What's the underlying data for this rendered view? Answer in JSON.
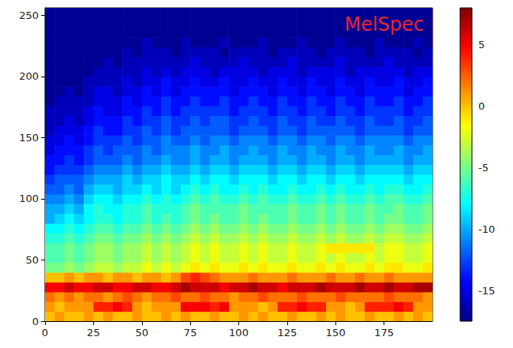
{
  "chart_data": {
    "type": "heatmap",
    "title": "MelSpec",
    "x_bins": [
      0,
      5,
      10,
      15,
      20,
      25,
      30,
      35,
      40,
      45,
      50,
      55,
      60,
      65,
      70,
      75,
      80,
      85,
      90,
      95,
      100,
      105,
      110,
      115,
      120,
      125,
      130,
      135,
      140,
      145,
      150,
      155,
      160,
      165,
      170,
      175,
      180,
      185,
      190,
      195,
      200
    ],
    "y_bins": [
      0,
      8,
      16,
      24,
      32,
      40,
      48,
      56,
      64,
      72,
      80,
      88,
      96,
      104,
      112,
      120,
      128,
      136,
      144,
      152,
      160,
      168,
      176,
      184,
      192,
      200,
      208,
      216,
      224,
      232,
      240,
      248,
      256
    ],
    "z": [
      [
        0,
        1,
        0,
        0,
        1,
        0,
        1,
        0,
        0,
        1,
        0,
        0,
        1,
        0,
        1,
        0,
        0,
        1,
        0,
        0,
        1,
        0,
        1,
        0,
        0,
        1,
        0,
        0,
        1,
        0,
        1,
        0,
        0,
        1,
        0,
        0,
        1,
        0,
        1,
        0
      ],
      [
        1,
        0,
        1,
        1,
        1,
        4,
        4,
        5,
        4,
        1,
        0,
        1,
        1,
        1,
        5,
        5,
        5,
        4,
        5,
        1,
        1,
        1,
        0,
        1,
        4,
        4,
        5,
        4,
        4,
        1,
        1,
        0,
        1,
        4,
        4,
        4,
        5,
        4,
        1,
        1
      ],
      [
        2,
        1,
        2,
        1,
        2,
        2,
        1,
        2,
        3,
        2,
        1,
        2,
        2,
        3,
        2,
        2,
        3,
        2,
        2,
        1,
        2,
        2,
        3,
        2,
        2,
        2,
        3,
        2,
        2,
        2,
        3,
        2,
        2,
        2,
        2,
        3,
        2,
        2,
        2,
        1
      ],
      [
        5,
        5,
        6,
        5,
        5,
        6,
        6,
        5,
        5,
        6,
        6,
        5,
        5,
        6,
        7,
        6,
        6,
        6,
        5,
        6,
        6,
        7,
        6,
        6,
        5,
        6,
        6,
        6,
        7,
        6,
        6,
        6,
        7,
        6,
        6,
        7,
        6,
        6,
        7,
        7
      ],
      [
        0,
        0,
        1,
        0,
        1,
        1,
        0,
        1,
        1,
        0,
        1,
        1,
        0,
        1,
        3,
        4,
        3,
        2,
        1,
        1,
        1,
        2,
        1,
        1,
        1,
        2,
        1,
        1,
        1,
        2,
        1,
        1,
        2,
        1,
        1,
        2,
        1,
        1,
        1,
        1
      ],
      [
        -5,
        -5,
        -4,
        -5,
        -4,
        -3,
        -3,
        -4,
        -3,
        -3,
        -2,
        -3,
        -2,
        -3,
        -2,
        -1,
        -2,
        -1,
        -2,
        -2,
        -1,
        -2,
        -1,
        -2,
        -2,
        -1,
        -2,
        -2,
        -1,
        -2,
        -1,
        -2,
        -2,
        -1,
        -2,
        -1,
        -1,
        -2,
        -2,
        -1
      ],
      [
        -6,
        -6,
        -5,
        -6,
        -5,
        -4,
        -4,
        -5,
        -4,
        -4,
        -3,
        -4,
        -3,
        -4,
        -3,
        -2,
        -3,
        -2,
        -3,
        -3,
        -2,
        -3,
        -2,
        -3,
        -3,
        -2,
        -3,
        -3,
        -2,
        -3,
        -2,
        -3,
        -3,
        -2,
        -3,
        -2,
        -2,
        -3,
        -3,
        -2
      ],
      [
        -6,
        -6,
        -5,
        -6,
        -5,
        -4,
        -4,
        -5,
        -4,
        -4,
        -3,
        -4,
        -3,
        -4,
        -3,
        -2,
        -3,
        -2,
        -3,
        -3,
        -2,
        -3,
        -2,
        -3,
        -3,
        -2,
        -3,
        -3,
        -2,
        -1,
        -1,
        -1,
        -1,
        -1,
        -3,
        -2,
        -2,
        -3,
        -3,
        -2
      ],
      [
        -7,
        -7,
        -6,
        -7,
        -6,
        -5,
        -5,
        -6,
        -5,
        -5,
        -4,
        -5,
        -4,
        -5,
        -4,
        -3,
        -4,
        -3,
        -4,
        -4,
        -3,
        -4,
        -3,
        -4,
        -4,
        -3,
        -4,
        -4,
        -3,
        -4,
        -3,
        -4,
        -4,
        -3,
        -4,
        -3,
        -3,
        -4,
        -4,
        -3
      ],
      [
        -8,
        -8,
        -7,
        -8,
        -7,
        -6,
        -6,
        -7,
        -6,
        -6,
        -5,
        -6,
        -5,
        -6,
        -5,
        -4,
        -5,
        -4,
        -5,
        -5,
        -4,
        -5,
        -4,
        -5,
        -5,
        -4,
        -5,
        -5,
        -4,
        -5,
        -4,
        -5,
        -5,
        -4,
        -5,
        -4,
        -4,
        -5,
        -5,
        -4
      ],
      [
        -10,
        -9,
        -8,
        -9,
        -8,
        -7,
        -7,
        -8,
        -7,
        -7,
        -6,
        -7,
        -6,
        -7,
        -6,
        -5,
        -6,
        -5,
        -6,
        -6,
        -5,
        -6,
        -5,
        -6,
        -6,
        -5,
        -6,
        -6,
        -5,
        -6,
        -5,
        -6,
        -6,
        -5,
        -6,
        -5,
        -5,
        -6,
        -6,
        -5
      ],
      [
        -10,
        -10,
        -9,
        -10,
        -8,
        -7,
        -8,
        -8,
        -7,
        -7,
        -6,
        -7,
        -7,
        -7,
        -6,
        -5,
        -6,
        -6,
        -6,
        -6,
        -5,
        -6,
        -6,
        -6,
        -6,
        -5,
        -6,
        -6,
        -5,
        -6,
        -5,
        -6,
        -6,
        -5,
        -6,
        -6,
        -5,
        -6,
        -6,
        -5
      ],
      [
        -11,
        -11,
        -10,
        -11,
        -9,
        -8,
        -8,
        -9,
        -8,
        -8,
        -7,
        -8,
        -7,
        -8,
        -7,
        -6,
        -7,
        -6,
        -7,
        -7,
        -6,
        -7,
        -6,
        -7,
        -7,
        -6,
        -7,
        -7,
        -6,
        -7,
        -6,
        -7,
        -7,
        -6,
        -7,
        -6,
        -6,
        -7,
        -7,
        -6
      ],
      [
        -12,
        -12,
        -11,
        -12,
        -10,
        -9,
        -9,
        -10,
        -9,
        -9,
        -8,
        -9,
        -8,
        -9,
        -8,
        -7,
        -8,
        -7,
        -8,
        -8,
        -7,
        -8,
        -7,
        -8,
        -8,
        -7,
        -8,
        -8,
        -7,
        -8,
        -7,
        -8,
        -8,
        -7,
        -8,
        -7,
        -7,
        -8,
        -8,
        -7
      ],
      [
        -13,
        -12,
        -12,
        -12,
        -11,
        -10,
        -10,
        -10,
        -9,
        -10,
        -9,
        -9,
        -8,
        -9,
        -9,
        -8,
        -9,
        -8,
        -8,
        -9,
        -8,
        -8,
        -8,
        -9,
        -8,
        -8,
        -9,
        -8,
        -8,
        -9,
        -8,
        -8,
        -9,
        -8,
        -8,
        -8,
        -8,
        -9,
        -8,
        -8
      ],
      [
        -14,
        -13,
        -13,
        -13,
        -12,
        -11,
        -11,
        -11,
        -10,
        -11,
        -10,
        -10,
        -9,
        -10,
        -10,
        -9,
        -10,
        -9,
        -9,
        -10,
        -9,
        -9,
        -9,
        -10,
        -9,
        -9,
        -10,
        -9,
        -9,
        -10,
        -9,
        -9,
        -10,
        -9,
        -9,
        -9,
        -9,
        -10,
        -9,
        -9
      ],
      [
        -14,
        -14,
        -13,
        -14,
        -13,
        -12,
        -12,
        -12,
        -11,
        -12,
        -11,
        -11,
        -10,
        -11,
        -11,
        -10,
        -11,
        -10,
        -10,
        -11,
        -10,
        -10,
        -10,
        -11,
        -10,
        -10,
        -11,
        -10,
        -10,
        -11,
        -10,
        -10,
        -11,
        -10,
        -10,
        -10,
        -10,
        -11,
        -10,
        -10
      ],
      [
        -15,
        -14,
        -14,
        -14,
        -13,
        -12,
        -13,
        -12,
        -12,
        -12,
        -11,
        -12,
        -11,
        -11,
        -11,
        -10,
        -11,
        -11,
        -10,
        -11,
        -11,
        -10,
        -11,
        -11,
        -10,
        -11,
        -11,
        -10,
        -11,
        -11,
        -10,
        -11,
        -11,
        -10,
        -11,
        -11,
        -10,
        -11,
        -11,
        -10
      ],
      [
        -15,
        -15,
        -14,
        -15,
        -14,
        -13,
        -13,
        -13,
        -12,
        -13,
        -12,
        -12,
        -11,
        -12,
        -12,
        -11,
        -12,
        -11,
        -11,
        -12,
        -11,
        -11,
        -11,
        -12,
        -11,
        -11,
        -12,
        -11,
        -11,
        -12,
        -11,
        -11,
        -12,
        -11,
        -11,
        -11,
        -11,
        -12,
        -11,
        -11
      ],
      [
        -16,
        -15,
        -15,
        -15,
        -14,
        -13,
        -14,
        -14,
        -13,
        -13,
        -12,
        -13,
        -12,
        -13,
        -12,
        -12,
        -12,
        -12,
        -12,
        -13,
        -12,
        -12,
        -12,
        -13,
        -12,
        -12,
        -13,
        -12,
        -12,
        -12,
        -12,
        -12,
        -13,
        -12,
        -12,
        -12,
        -12,
        -13,
        -12,
        -12
      ],
      [
        -16,
        -16,
        -15,
        -16,
        -15,
        -14,
        -14,
        -14,
        -13,
        -14,
        -13,
        -13,
        -12,
        -13,
        -13,
        -12,
        -13,
        -12,
        -12,
        -13,
        -13,
        -12,
        -13,
        -13,
        -12,
        -13,
        -13,
        -12,
        -13,
        -13,
        -12,
        -13,
        -13,
        -12,
        -13,
        -13,
        -12,
        -13,
        -13,
        -12
      ],
      [
        -16,
        -16,
        -16,
        -16,
        -15,
        -14,
        -15,
        -15,
        -14,
        -14,
        -13,
        -14,
        -13,
        -14,
        -13,
        -13,
        -13,
        -13,
        -13,
        -14,
        -13,
        -13,
        -13,
        -14,
        -13,
        -13,
        -14,
        -13,
        -13,
        -14,
        -13,
        -13,
        -14,
        -13,
        -13,
        -13,
        -13,
        -14,
        -13,
        -13
      ],
      [
        -17,
        -16,
        -16,
        -16,
        -16,
        -15,
        -15,
        -15,
        -14,
        -15,
        -14,
        -14,
        -13,
        -14,
        -14,
        -13,
        -14,
        -14,
        -13,
        -14,
        -14,
        -13,
        -14,
        -14,
        -13,
        -14,
        -14,
        -13,
        -14,
        -14,
        -13,
        -14,
        -14,
        -13,
        -14,
        -14,
        -13,
        -14,
        -14,
        -13
      ],
      [
        -17,
        -17,
        -16,
        -17,
        -16,
        -15,
        -15,
        -16,
        -15,
        -15,
        -14,
        -15,
        -14,
        -15,
        -14,
        -14,
        -14,
        -14,
        -14,
        -15,
        -14,
        -14,
        -14,
        -15,
        -14,
        -14,
        -15,
        -14,
        -14,
        -15,
        -14,
        -14,
        -15,
        -14,
        -14,
        -14,
        -14,
        -15,
        -14,
        -14
      ],
      [
        -17,
        -17,
        -17,
        -17,
        -16,
        -16,
        -16,
        -16,
        -15,
        -16,
        -15,
        -15,
        -14,
        -15,
        -15,
        -14,
        -15,
        -15,
        -14,
        -15,
        -15,
        -14,
        -15,
        -15,
        -14,
        -15,
        -15,
        -14,
        -15,
        -15,
        -14,
        -15,
        -15,
        -14,
        -15,
        -15,
        -14,
        -15,
        -15,
        -14
      ],
      [
        -17,
        -17,
        -17,
        -17,
        -17,
        -16,
        -16,
        -16,
        -16,
        -16,
        -15,
        -16,
        -15,
        -16,
        -15,
        -15,
        -15,
        -16,
        -15,
        -15,
        -15,
        -15,
        -16,
        -15,
        -15,
        -15,
        -16,
        -15,
        -15,
        -15,
        -15,
        -16,
        -15,
        -15,
        -15,
        -15,
        -15,
        -16,
        -15,
        -15
      ],
      [
        -17,
        -17,
        -17,
        -17,
        -17,
        -17,
        -16,
        -17,
        -16,
        -16,
        -16,
        -16,
        -16,
        -16,
        -16,
        -15,
        -16,
        -16,
        -16,
        -16,
        -15,
        -16,
        -16,
        -16,
        -16,
        -15,
        -16,
        -16,
        -16,
        -16,
        -15,
        -16,
        -16,
        -16,
        -16,
        -15,
        -16,
        -16,
        -16,
        -16
      ],
      [
        -17,
        -17,
        -17,
        -17,
        -17,
        -17,
        -17,
        -17,
        -16,
        -17,
        -16,
        -16,
        -16,
        -17,
        -16,
        -16,
        -16,
        -16,
        -17,
        -16,
        -16,
        -16,
        -16,
        -17,
        -16,
        -16,
        -16,
        -16,
        -17,
        -16,
        -16,
        -16,
        -16,
        -17,
        -16,
        -16,
        -16,
        -16,
        -17,
        -16
      ],
      [
        -17,
        -17,
        -17,
        -17,
        -17,
        -17,
        -17,
        -17,
        -17,
        -17,
        -16,
        -17,
        -17,
        -17,
        -16,
        -17,
        -17,
        -17,
        -16,
        -17,
        -17,
        -17,
        -16,
        -17,
        -17,
        -17,
        -16,
        -17,
        -17,
        -17,
        -16,
        -17,
        -17,
        -17,
        -16,
        -17,
        -17,
        -17,
        -16,
        -17
      ],
      [
        -17,
        -17,
        -17,
        -17,
        -17,
        -17,
        -17,
        -17,
        -17,
        -17,
        -17,
        -17,
        -17,
        -17,
        -17,
        -17,
        -17,
        -17,
        -17,
        -17,
        -17,
        -17,
        -17,
        -17,
        -17,
        -17,
        -17,
        -17,
        -17,
        -17,
        -17,
        -17,
        -17,
        -17,
        -17,
        -17,
        -17,
        -17,
        -17,
        -17
      ],
      [
        -17,
        -17,
        -17,
        -17,
        -17,
        -17,
        -17,
        -17,
        -17,
        -17,
        -17,
        -17,
        -17,
        -17,
        -17,
        -17,
        -17,
        -17,
        -17,
        -17,
        -17,
        -17,
        -17,
        -17,
        -17,
        -17,
        -17,
        -17,
        -17,
        -17,
        -17,
        -17,
        -17,
        -17,
        -17,
        -17,
        -17,
        -17,
        -17,
        -17
      ],
      [
        -17,
        -17,
        -17,
        -17,
        -17,
        -17,
        -17,
        -17,
        -17,
        -17,
        -17,
        -17,
        -17,
        -17,
        -17,
        -17,
        -17,
        -17,
        -17,
        -17,
        -17,
        -17,
        -17,
        -17,
        -17,
        -17,
        -17,
        -17,
        -17,
        -17,
        -17,
        -17,
        -17,
        -17,
        -17,
        -17,
        -17,
        -17,
        -17,
        -17
      ]
    ],
    "xlim": [
      0,
      200
    ],
    "xticks": [
      0,
      25,
      50,
      75,
      100,
      125,
      150,
      175
    ],
    "ylim": [
      0,
      256
    ],
    "yticks": [
      0,
      50,
      100,
      150,
      200,
      250
    ],
    "colorbar": {
      "range": [
        -17.5,
        8
      ],
      "ticks": [
        -15,
        -10,
        -5,
        0,
        5
      ]
    }
  }
}
